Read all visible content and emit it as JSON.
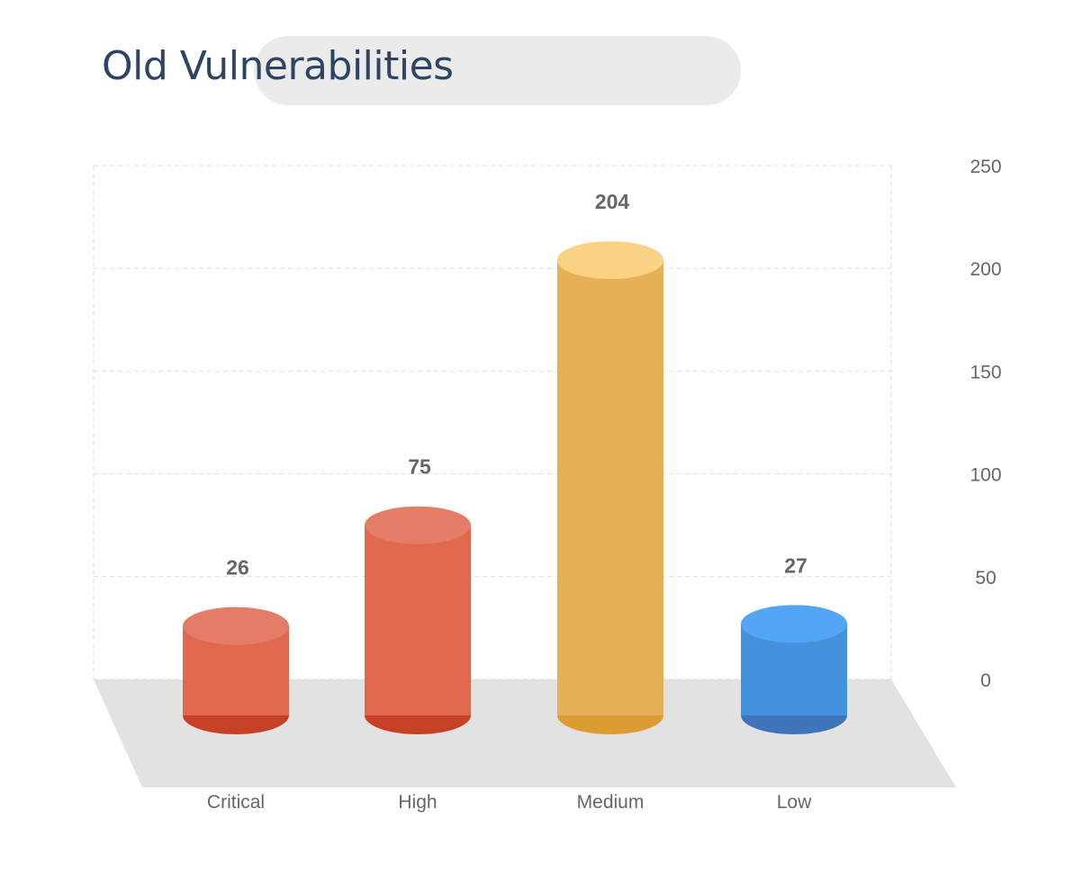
{
  "chart_data": {
    "type": "bar",
    "title": "Old Vulnerabilities",
    "categories": [
      "Critical",
      "High",
      "Medium",
      "Low"
    ],
    "values": [
      26,
      75,
      204,
      27
    ],
    "value_labels": [
      "26",
      "75",
      "204",
      "27"
    ],
    "ylim": [
      0,
      250
    ],
    "y_ticks": [
      0,
      50,
      100,
      150,
      200,
      250
    ],
    "y_tick_labels": [
      "0",
      "50",
      "100",
      "150",
      "200",
      "250"
    ],
    "y_axis_side": "right",
    "grid": true,
    "bar_style": "3d-cylinder",
    "colors": {
      "Critical": {
        "body": "#E0684E",
        "top": "#E37D68",
        "bottom": "#C64126"
      },
      "High": {
        "body": "#E0684E",
        "top": "#E37D68",
        "bottom": "#C64126"
      },
      "Medium": {
        "body": "#E6B156",
        "top": "#F9D283",
        "bottom": "#DC9C34"
      },
      "Low": {
        "body": "#4491DE",
        "top": "#53A6F5",
        "bottom": "#3F74BA"
      }
    }
  },
  "style": {
    "title_color": "#2E4463",
    "title_pill_color": "#EBEBEB",
    "floor_color": "#E2E2E2",
    "grid_color": "#DDDDDD"
  }
}
